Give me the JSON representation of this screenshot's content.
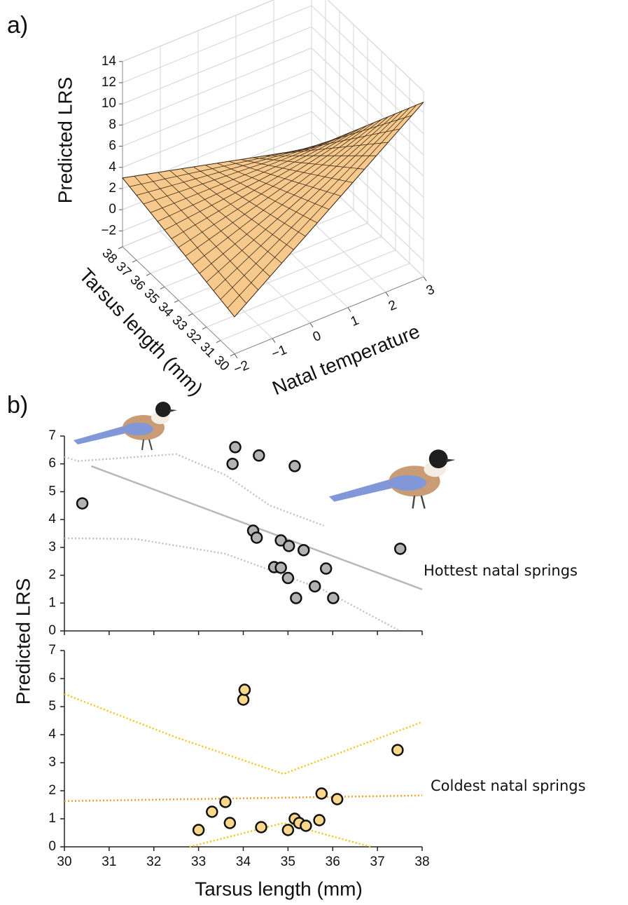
{
  "chart_data": [
    {
      "type": "surface",
      "panel_label": "a)",
      "xlabel": "Tarsus length (mm)",
      "ylabel": "Natal temperature",
      "zlabel": "Predicted LRS",
      "x": [
        30,
        38
      ],
      "y": [
        -2,
        3
      ],
      "z": [
        [
          0,
          13
        ],
        [
          3,
          -1.5
        ]
      ],
      "xlim": [
        30,
        38
      ],
      "ylim": [
        -2,
        3
      ],
      "zlim": [
        -3.5,
        14
      ],
      "xticks": [
        30,
        31,
        32,
        33,
        34,
        35,
        36,
        37,
        38
      ],
      "yticks": [
        {
          "value": -2,
          "label": "−2"
        },
        {
          "value": -1,
          "label": "−1"
        },
        0,
        1,
        2,
        3
      ],
      "zticks": [
        {
          "value": -2,
          "label": "−2"
        },
        0,
        2,
        4,
        6,
        8,
        10,
        12,
        14
      ],
      "color": "#f8c98c",
      "grid": true
    },
    {
      "type": "scatter",
      "panel_label": "b)",
      "ylabel": "Predicted LRS",
      "annotation": "Hottest natal springs",
      "x": [
        30.4,
        33.82,
        33.76,
        34.35,
        35.15,
        34.22,
        34.3,
        34.84,
        35.02,
        35.35,
        34.69,
        34.84,
        35.0,
        35.6,
        35.85,
        35.18,
        36.01,
        37.51
      ],
      "values": [
        4.58,
        6.6,
        6.0,
        6.3,
        5.92,
        3.6,
        3.35,
        3.25,
        3.05,
        2.9,
        2.29,
        2.27,
        1.9,
        1.6,
        2.24,
        1.18,
        1.18,
        2.95
      ],
      "color": "#b3b3b3",
      "fit": {
        "x": [
          30.6,
          38
        ],
        "y": [
          5.92,
          1.49
        ],
        "color": "#b8b8b8",
        "dashed": false
      },
      "ci_upper": {
        "x": [
          30,
          30.3,
          32.5,
          33.6,
          34.6,
          35.8
        ],
        "y": [
          6.25,
          6.1,
          6.35,
          5.6,
          4.5,
          3.78
        ],
        "color": "#c2c2c2",
        "dashed": true
      },
      "ci_lower": {
        "x": [
          30,
          31.6,
          33.6,
          35.76,
          37.5
        ],
        "y": [
          3.33,
          3.3,
          2.77,
          1.5,
          0
        ],
        "color": "#c2c2c2",
        "dashed": true
      },
      "xlim": [
        30,
        38
      ],
      "ylim": [
        0,
        7
      ],
      "xticks": [
        30,
        31,
        32,
        33,
        34,
        35,
        36,
        37,
        38
      ],
      "yticks": [
        0,
        1,
        2,
        3,
        4,
        5,
        6,
        7
      ]
    },
    {
      "type": "scatter",
      "xlabel": "Tarsus length (mm)",
      "annotation": "Coldest natal springs",
      "x": [
        33.0,
        33.3,
        33.6,
        33.7,
        34.0,
        34.03,
        34.4,
        35.0,
        35.15,
        35.25,
        35.4,
        35.7,
        35.75,
        36.1,
        37.45
      ],
      "values": [
        0.6,
        1.25,
        1.6,
        0.85,
        5.25,
        5.6,
        0.7,
        0.6,
        1.0,
        0.85,
        0.75,
        0.95,
        1.9,
        1.7,
        3.45
      ],
      "color": "#fbd78c",
      "fit": {
        "x": [
          30,
          38
        ],
        "y": [
          1.63,
          1.83
        ],
        "color": "#f0a030",
        "dashed": true
      },
      "ci_upper": {
        "x": [
          30,
          32.5,
          34.9,
          38
        ],
        "y": [
          5.45,
          3.9,
          2.6,
          4.45
        ],
        "color": "#f3c51a",
        "dashed": true
      },
      "ci_lower": {
        "x": [
          32.8,
          34.9,
          36.85
        ],
        "y": [
          0,
          0.85,
          0
        ],
        "color": "#f3c51a",
        "dashed": true
      },
      "xlim": [
        30,
        38
      ],
      "ylim": [
        0,
        7
      ],
      "xticks": [
        30,
        31,
        32,
        33,
        34,
        35,
        36,
        37,
        38
      ],
      "yticks": [
        0,
        1,
        2,
        3,
        4,
        5,
        6,
        7
      ]
    }
  ]
}
